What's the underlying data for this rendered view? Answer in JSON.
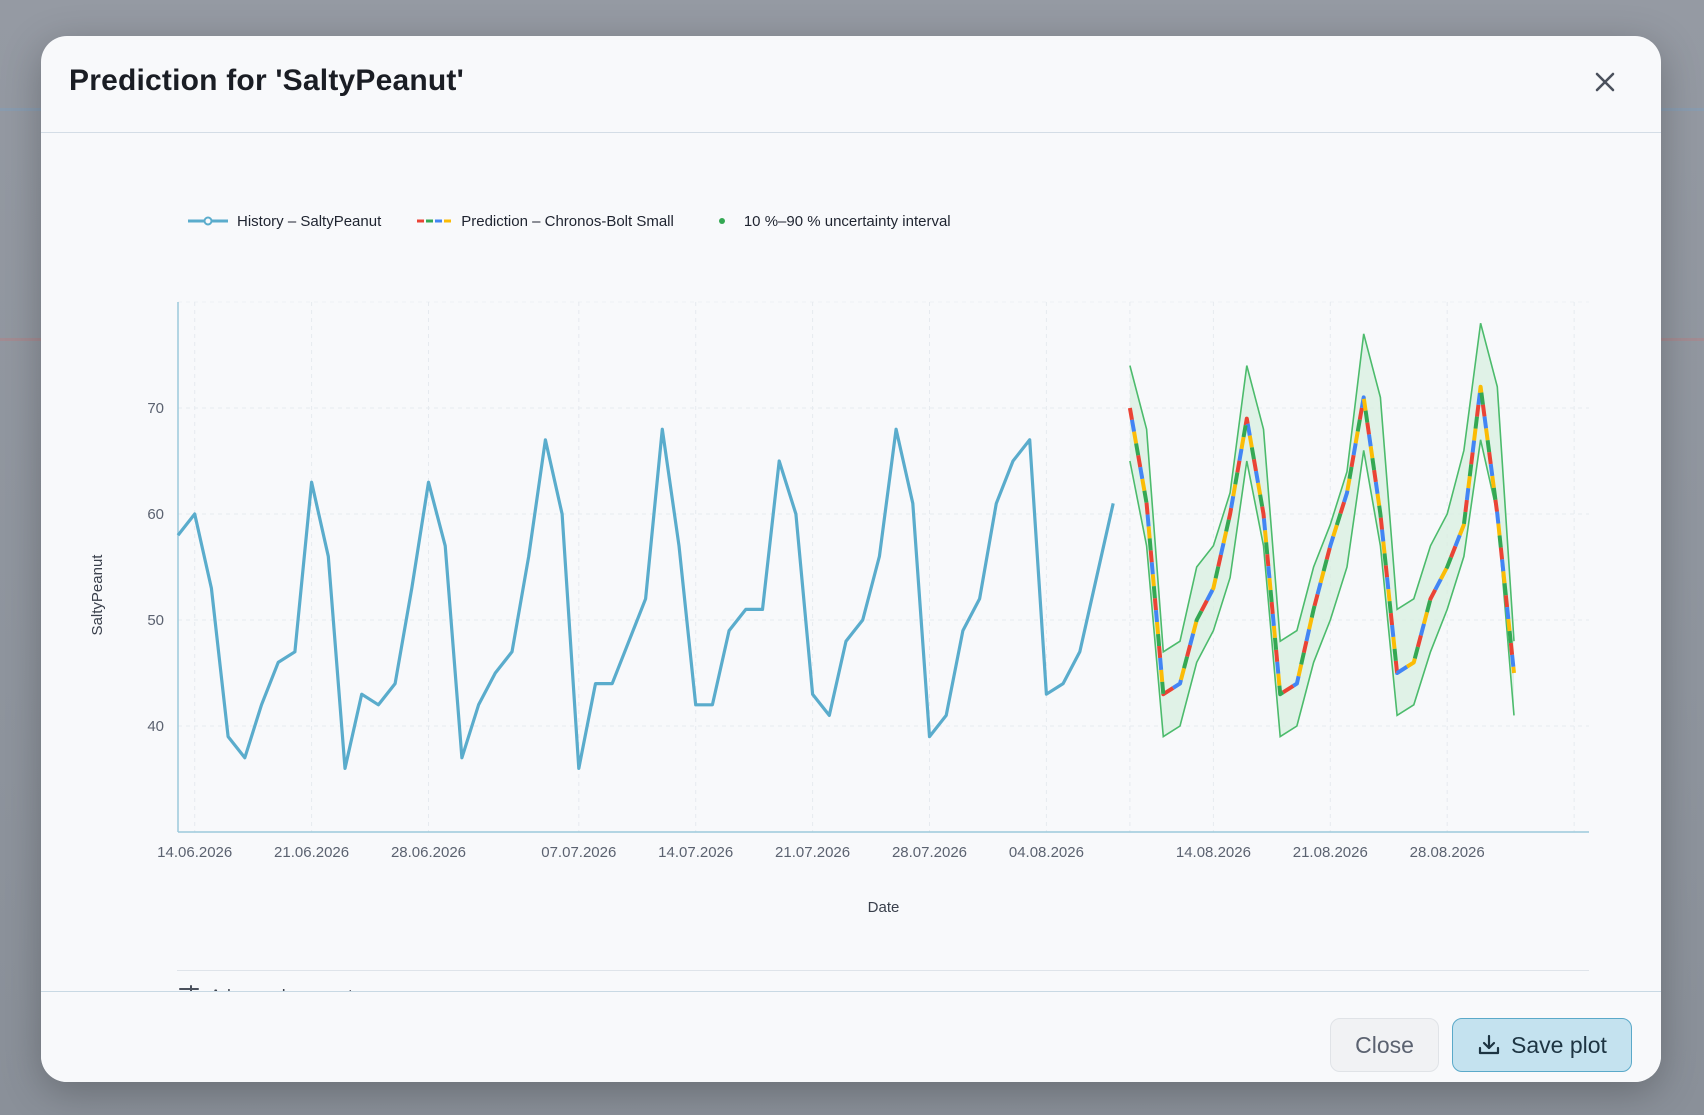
{
  "modal": {
    "title": "Prediction for 'SaltyPeanut'",
    "close_label": "Close",
    "save_label": "Save plot",
    "advanced_label": "Advanced parameters"
  },
  "legend": {
    "history": "History – SaltyPeanut",
    "prediction": "Prediction – Chronos-Bolt Small",
    "interval": "10 %–90 % uncertainty interval"
  },
  "colors": {
    "history": "#5aaccc",
    "band_fill": "#d8efe0",
    "band_line": "#4cbb6c",
    "pred_dashes": [
      "#ea4335",
      "#4285f4",
      "#fbbc05",
      "#34a853"
    ]
  },
  "chart_data": {
    "type": "line",
    "xlabel": "Date",
    "ylabel": "SaltyPeanut",
    "ylim": [
      30,
      80
    ],
    "yticks": [
      40,
      50,
      60,
      70
    ],
    "x_start": "13.06.2026",
    "xtick_labels": [
      "14.06.2026",
      "21.06.2026",
      "28.06.2026",
      "07.07.2026",
      "14.07.2026",
      "21.07.2026",
      "28.07.2026",
      "04.08.2026",
      "14.08.2026",
      "21.08.2026",
      "28.08.2026"
    ],
    "xtick_days": [
      1,
      8,
      15,
      24,
      31,
      38,
      45,
      52,
      62,
      69,
      76
    ],
    "grid": true,
    "series": [
      {
        "name": "History – SaltyPeanut",
        "x_day_start": 0,
        "values": [
          58,
          60,
          53,
          39,
          37,
          42,
          46,
          47,
          63,
          56,
          36,
          43,
          42,
          44,
          53,
          63,
          57,
          37,
          42,
          45,
          47,
          56,
          67,
          60,
          36,
          44,
          44,
          48,
          52,
          68,
          57,
          42,
          42,
          49,
          51,
          51,
          65,
          60,
          43,
          41,
          48,
          50,
          56,
          68,
          61,
          39,
          41,
          49,
          52,
          61,
          65,
          67,
          43,
          44,
          47,
          54,
          61
        ]
      },
      {
        "name": "Prediction – Chronos-Bolt Small",
        "x_day_start": 57,
        "values": [
          70,
          61,
          43,
          44,
          50,
          53,
          60,
          69,
          60,
          43,
          44,
          51,
          57,
          62,
          71,
          60,
          45,
          46,
          52,
          55,
          59,
          72,
          60,
          45
        ]
      },
      {
        "name": "10 %–90 % uncertainty interval",
        "x_day_start": 57,
        "lower": [
          65,
          57,
          39,
          40,
          46,
          49,
          54,
          65,
          57,
          39,
          40,
          46,
          50,
          55,
          66,
          57,
          41,
          42,
          47,
          51,
          56,
          67,
          60,
          41
        ],
        "upper": [
          74,
          68,
          47,
          48,
          55,
          57,
          62,
          74,
          68,
          48,
          49,
          55,
          59,
          64,
          77,
          71,
          51,
          52,
          57,
          60,
          66,
          78,
          72,
          48
        ]
      }
    ]
  }
}
